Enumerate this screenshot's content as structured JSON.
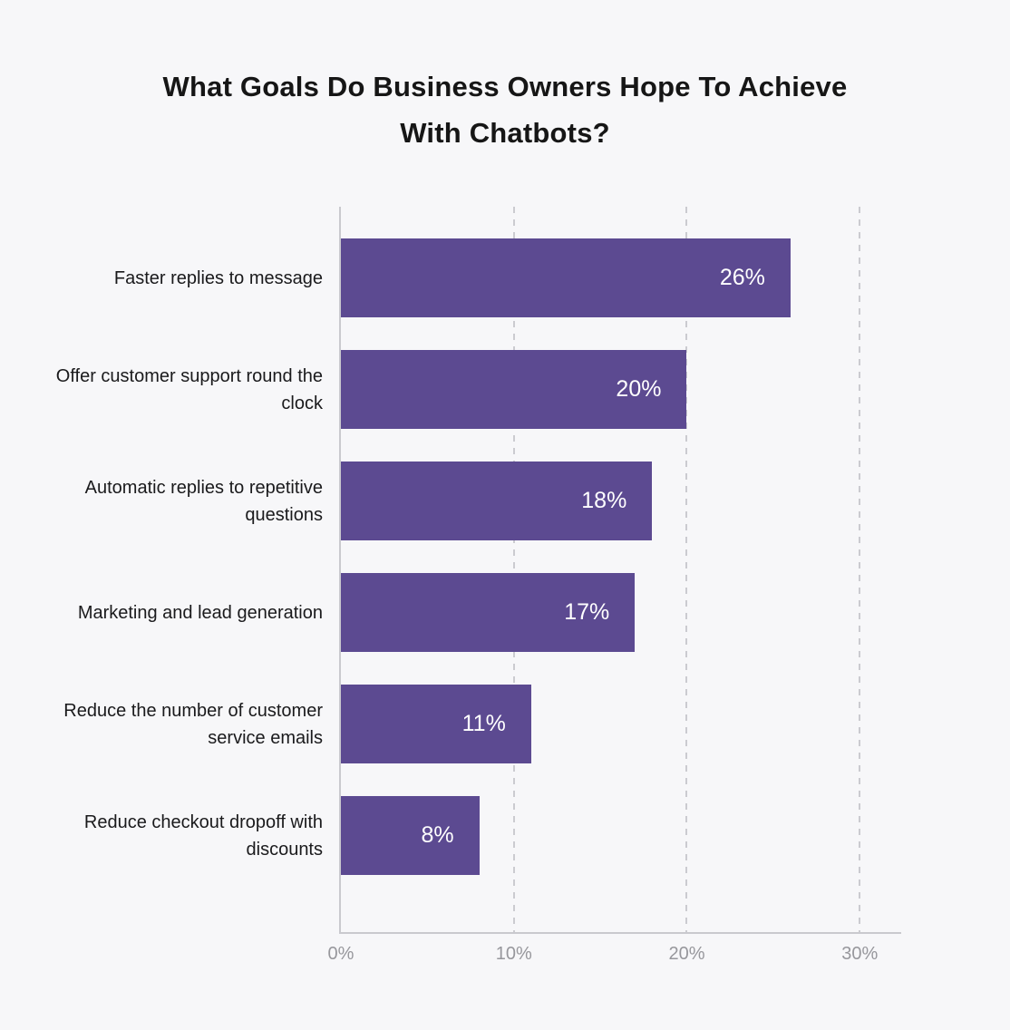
{
  "chart_data": {
    "type": "bar",
    "orientation": "horizontal",
    "title": "What Goals Do Business Owners Hope To Achieve With Chatbots?",
    "categories": [
      "Faster replies to message",
      "Offer customer support round the clock",
      "Automatic replies to repetitive questions",
      "Marketing and lead generation",
      "Reduce the number of customer service emails",
      "Reduce checkout dropoff with discounts"
    ],
    "values": [
      26,
      20,
      18,
      17,
      11,
      8
    ],
    "value_labels": [
      "26%",
      "20%",
      "18%",
      "17%",
      "11%",
      "8%"
    ],
    "x_ticks": [
      "0%",
      "10%",
      "20%",
      "30%"
    ],
    "x_tick_values": [
      0,
      10,
      20,
      30
    ],
    "xlim": [
      0,
      32.4
    ],
    "xlabel": "",
    "ylabel": "",
    "grid": "vertical-dashed",
    "legend": "none",
    "colors": {
      "background": "#f7f7f9",
      "bar": "#5c4a91",
      "title_text": "#161616",
      "category_text": "#1a1a1c",
      "value_text": "#ffffff",
      "tick_text": "#97979c",
      "gridline": "#cbcbd0",
      "axis_line": "#c9c9ce"
    }
  }
}
